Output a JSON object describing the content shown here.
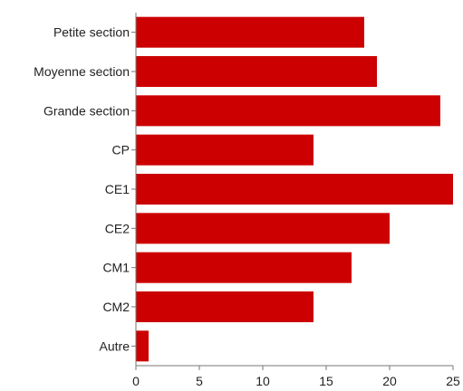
{
  "chart_data": {
    "type": "bar",
    "orientation": "horizontal",
    "categories": [
      "Petite section",
      "Moyenne section",
      "Grande section",
      "CP",
      "CE1",
      "CE2",
      "CM1",
      "CM2",
      "Autre"
    ],
    "values": [
      18,
      19,
      24,
      14,
      25,
      20,
      17,
      14,
      1
    ],
    "xlim": [
      0,
      25
    ],
    "xticks": [
      0,
      5,
      10,
      15,
      20,
      25
    ],
    "grid": false,
    "legend": "none",
    "bar_color": "#cc0000"
  }
}
